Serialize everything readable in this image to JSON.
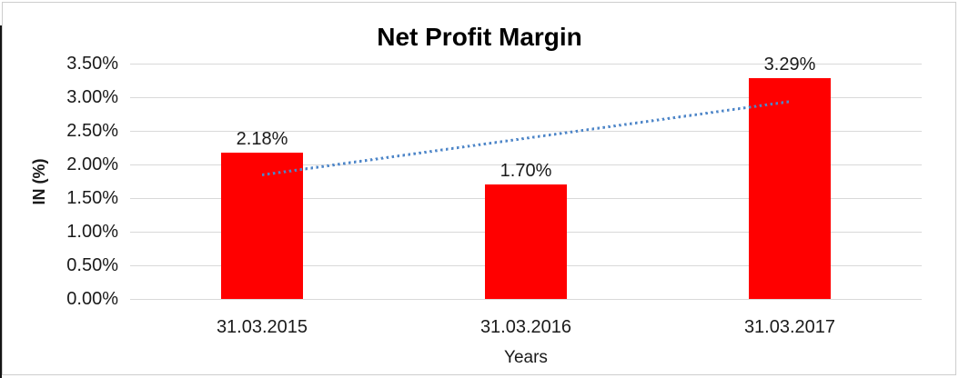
{
  "chart_data": {
    "type": "bar",
    "title": "Net Profit Margin",
    "xlabel": "Years",
    "ylabel": "IN (%)",
    "categories": [
      "31.03.2015",
      "31.03.2016",
      "31.03.2017"
    ],
    "values": [
      2.18,
      1.7,
      3.29
    ],
    "data_labels": [
      "2.18%",
      "1.70%",
      "3.29%"
    ],
    "yticks": [
      "3.50%",
      "3.00%",
      "2.50%",
      "2.00%",
      "1.50%",
      "1.00%",
      "0.50%",
      "0.00%"
    ],
    "ylim": [
      0,
      3.5
    ],
    "ytick_step": 0.5,
    "grid": true,
    "legend": false,
    "colors": {
      "bar": "#ff0000",
      "gridline": "#d9d9d9",
      "trendline": "#4e86c8",
      "text": "#1a1a1a",
      "border": "#cdcdcd"
    },
    "trendline": {
      "type": "linear",
      "style": "dotted",
      "from_value": 1.84,
      "to_value": 2.93
    }
  }
}
